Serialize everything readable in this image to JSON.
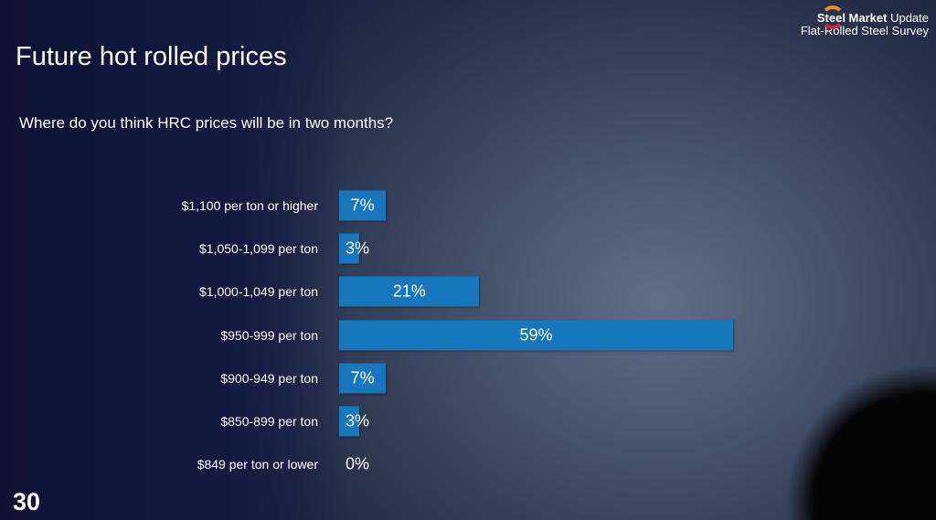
{
  "title": "Future hot rolled prices",
  "page_number": "30",
  "logo": {
    "line1_bold": "Steel Market",
    "line1_light": "Update",
    "line2": "Flat-Rolled Steel Survey"
  },
  "chart_data": {
    "type": "bar",
    "orientation": "horizontal",
    "title": "Where do you think HRC prices will be in two months?",
    "categories": [
      "$1,100 per ton or higher",
      "$1,050-1,099 per ton",
      "$1,000-1,049 per ton",
      "$950-999 per ton",
      "$900-949 per ton",
      "$850-899 per ton",
      "$849 per ton or lower"
    ],
    "values": [
      7,
      3,
      21,
      59,
      7,
      3,
      0
    ],
    "data_labels": [
      "7%",
      "3%",
      "21%",
      "59%",
      "7%",
      "3%",
      "0%"
    ],
    "xlim": [
      0,
      59
    ],
    "grid": false,
    "bar_color": "#1777bd"
  }
}
